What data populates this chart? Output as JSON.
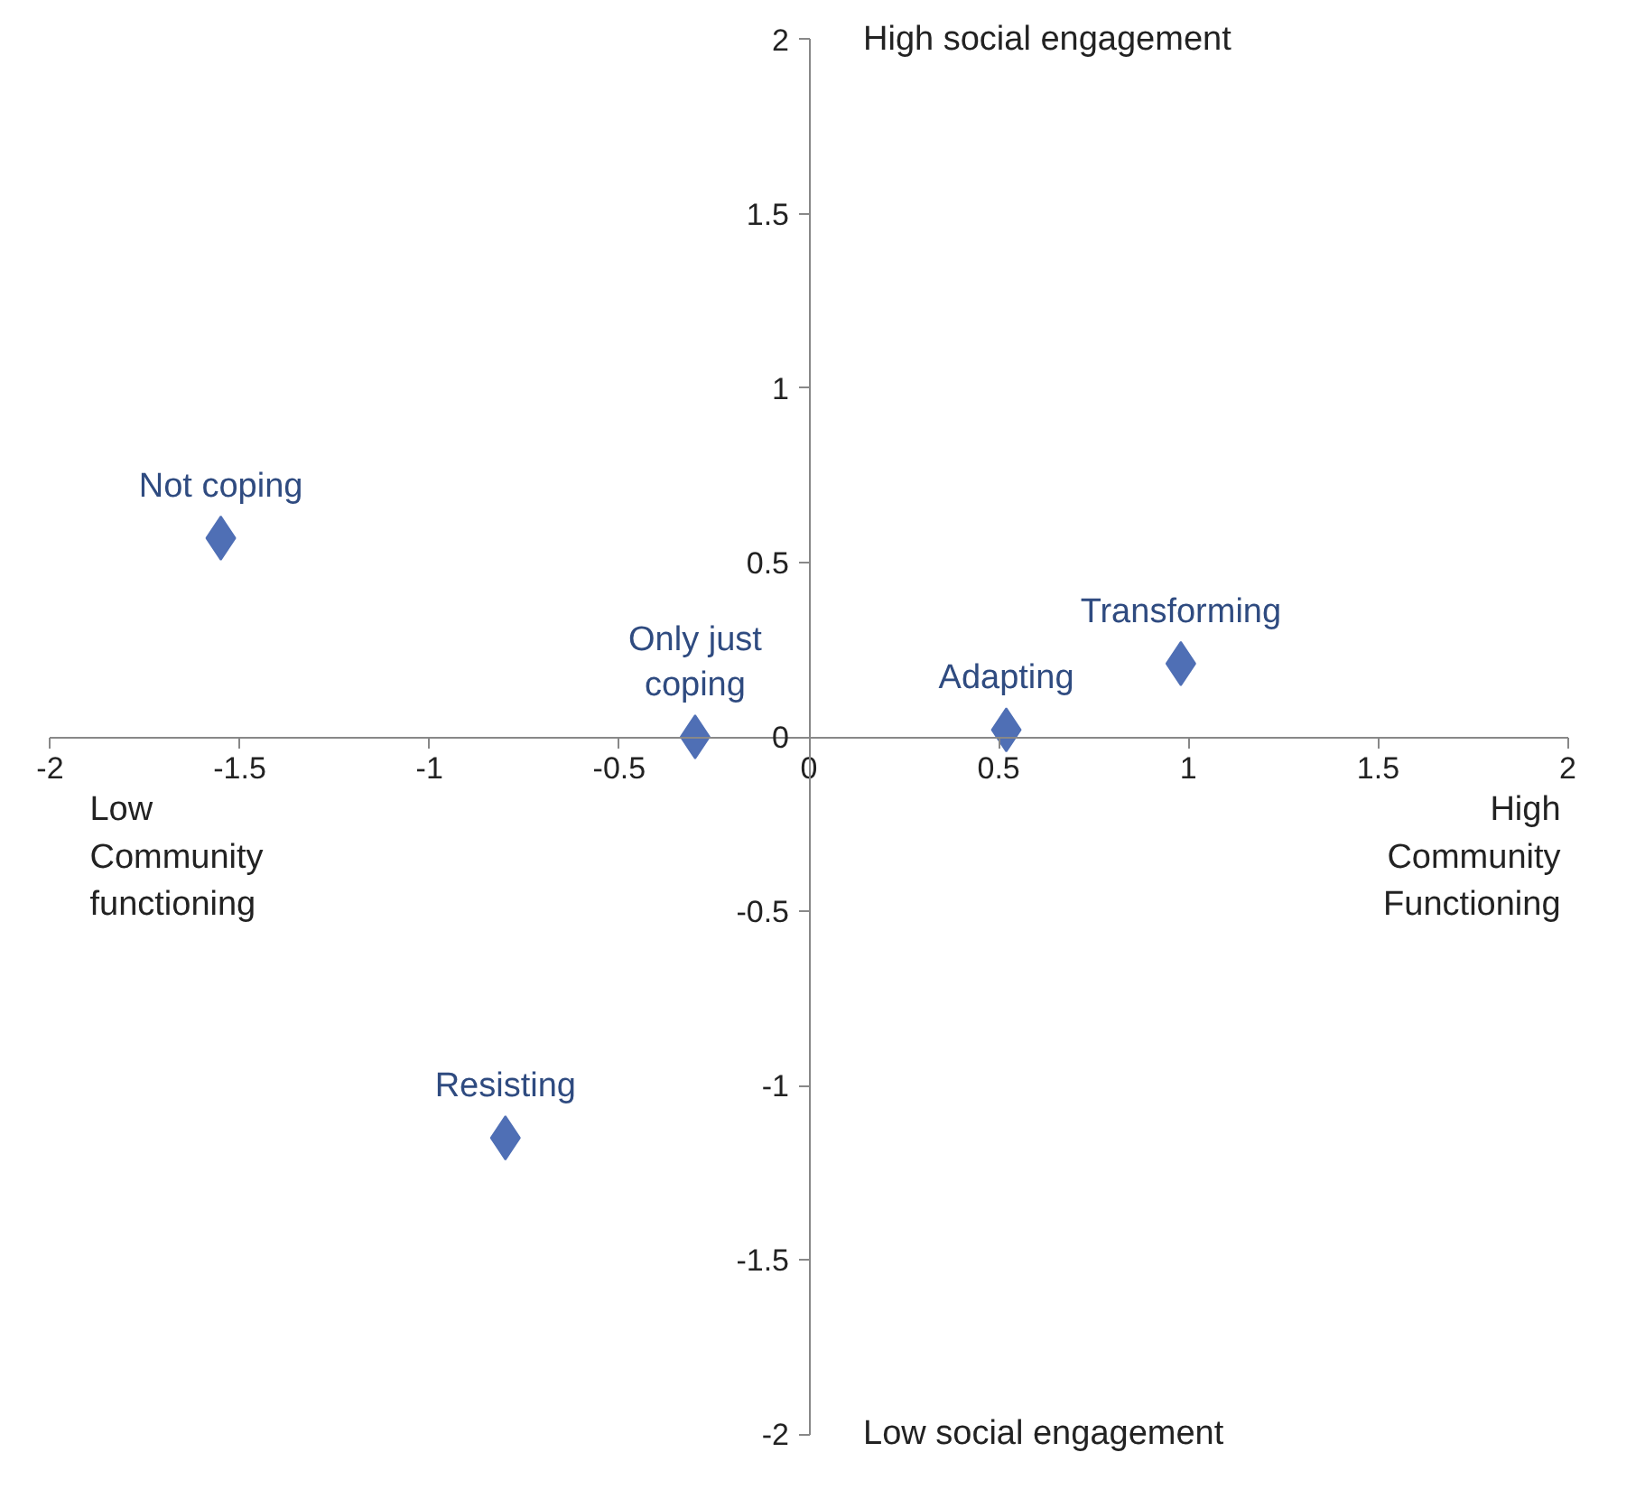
{
  "chart_data": {
    "type": "scatter",
    "marker": "diamond",
    "grid": false,
    "xlim": [
      -2,
      2
    ],
    "ylim": [
      -2,
      2
    ],
    "xticks": [
      -2,
      -1.5,
      -1,
      -0.5,
      0,
      0.5,
      1,
      1.5,
      2
    ],
    "yticks": [
      -2,
      -1.5,
      -1,
      -0.5,
      0,
      0.5,
      1,
      1.5,
      2
    ],
    "annotations": [
      "High social engagement",
      "Low social engagement",
      "Low Community functioning",
      "High Community Functioning"
    ],
    "series": [
      {
        "name": "Not coping",
        "color": "#4f6fb5",
        "x": [
          -1.55
        ],
        "values": [
          0.57
        ]
      },
      {
        "name": "Only just coping",
        "color": "#4f6fb5",
        "x": [
          -0.3
        ],
        "values": [
          0
        ]
      },
      {
        "name": "Adapting",
        "color": "#4f6fb5",
        "x": [
          0.52
        ],
        "values": [
          0.02
        ]
      },
      {
        "name": "Transforming",
        "color": "#4f6fb5",
        "x": [
          0.98
        ],
        "values": [
          0.21
        ]
      },
      {
        "name": "Resisting",
        "color": "#4f6fb5",
        "x": [
          -0.8
        ],
        "values": [
          -1.15
        ]
      }
    ]
  }
}
